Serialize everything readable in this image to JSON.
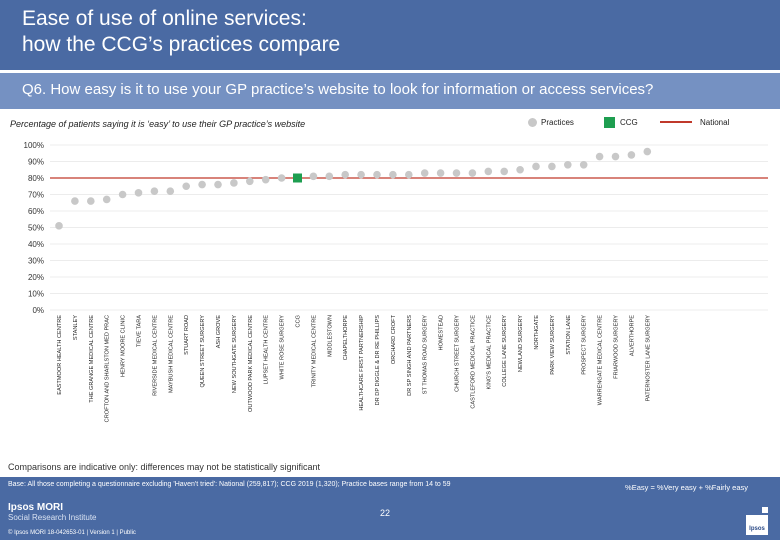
{
  "header": {
    "title_line1": "Ease of use of online services:",
    "title_line2": "how the CCG’s practices compare",
    "question": "Q6. How easy is it to use your GP practice’s website to look for information or access services?"
  },
  "subtitle": "Percentage of patients saying it is ‘easy’ to use their GP practice’s website",
  "legend": {
    "practices": "Practices",
    "ccg": "CCG",
    "national": "National"
  },
  "colors": {
    "practices": "#c8c8c8",
    "ccg": "#1e9e50",
    "national": "#c0392b",
    "header": "#4a6aa3"
  },
  "chart_data": {
    "type": "scatter",
    "ylim": [
      0,
      100
    ],
    "yticks": [
      "0%",
      "10%",
      "20%",
      "30%",
      "40%",
      "50%",
      "60%",
      "70%",
      "80%",
      "90%",
      "100%"
    ],
    "national_value": 80,
    "categories": [
      "EASTMOOR HEALTH CENTRE",
      "STANLEY",
      "THE GRANGE MEDICAL CENTRE",
      "CROFTON AND SHARLSTON MED PRAC",
      "HENRY MOORE CLINIC",
      "TIEVE TARA",
      "RIVERSIDE MEDICAL CENTRE",
      "MAYBUSH MEDICAL CENTRE",
      "STUART ROAD",
      "QUEEN STREET SURGERY",
      "ASH GROVE",
      "NEW SOUTHGATE SURGERY",
      "OUTWOOD PARK MEDICAL CENTRE",
      "LUPSET HEALTH CENTRE",
      "WHITE ROSE SURGERY",
      "CCG",
      "TRINITY MEDICAL CENTRE",
      "MIDDLESTOWN",
      "CHAPELTHORPE",
      "HEALTHCARE FIRST PARTNERSHIP",
      "DR DP DIGGLE & DR RE PHILLIPS",
      "ORCHARD CROFT",
      "DR SP SINGH AND PARTNERS",
      "ST THOMAS ROAD SURGERY",
      "HOMESTEAD",
      "CHURCH STREET SURGERY",
      "CASTLEFORD MEDICAL PRACTICE",
      "KING'S MEDICAL PRACTICE",
      "COLLEGE LANE SURGERY",
      "NEWLAND SURGERY",
      "NORTHGATE",
      "PARK VIEW SURGERY",
      "STATION LANE",
      "PROSPECT SURGERY",
      "WARRENGATE MEDICAL CENTRE",
      "FRIARWOOD SURGERY",
      "ALVERTHORPE",
      "PATERNOSTER LANE SURGERY"
    ],
    "values": [
      51,
      66,
      66,
      67,
      70,
      71,
      72,
      72,
      75,
      76,
      76,
      77,
      78,
      79,
      80,
      80,
      81,
      81,
      82,
      82,
      82,
      82,
      82,
      83,
      83,
      83,
      83,
      84,
      84,
      85,
      87,
      87,
      88,
      88,
      93,
      93,
      94,
      96
    ],
    "highlight_index": 15
  },
  "footnote": "Comparisons are indicative only: differences may not be statistically significant",
  "footer": {
    "base": "Base: All those completing a questionnaire excluding 'Haven't tried': National (259,817); CCG 2019 (1,320); Practice bases range from 14 to 59",
    "definition": "%Easy = %Very easy + %Fairly easy",
    "brand_line1": "Ipsos MORI",
    "brand_line2": "Social Research Institute",
    "copyright": "© Ipsos MORI    18-042653-01 | Version 1 | Public",
    "page_number": "22",
    "logo_text": "Ipsos"
  }
}
